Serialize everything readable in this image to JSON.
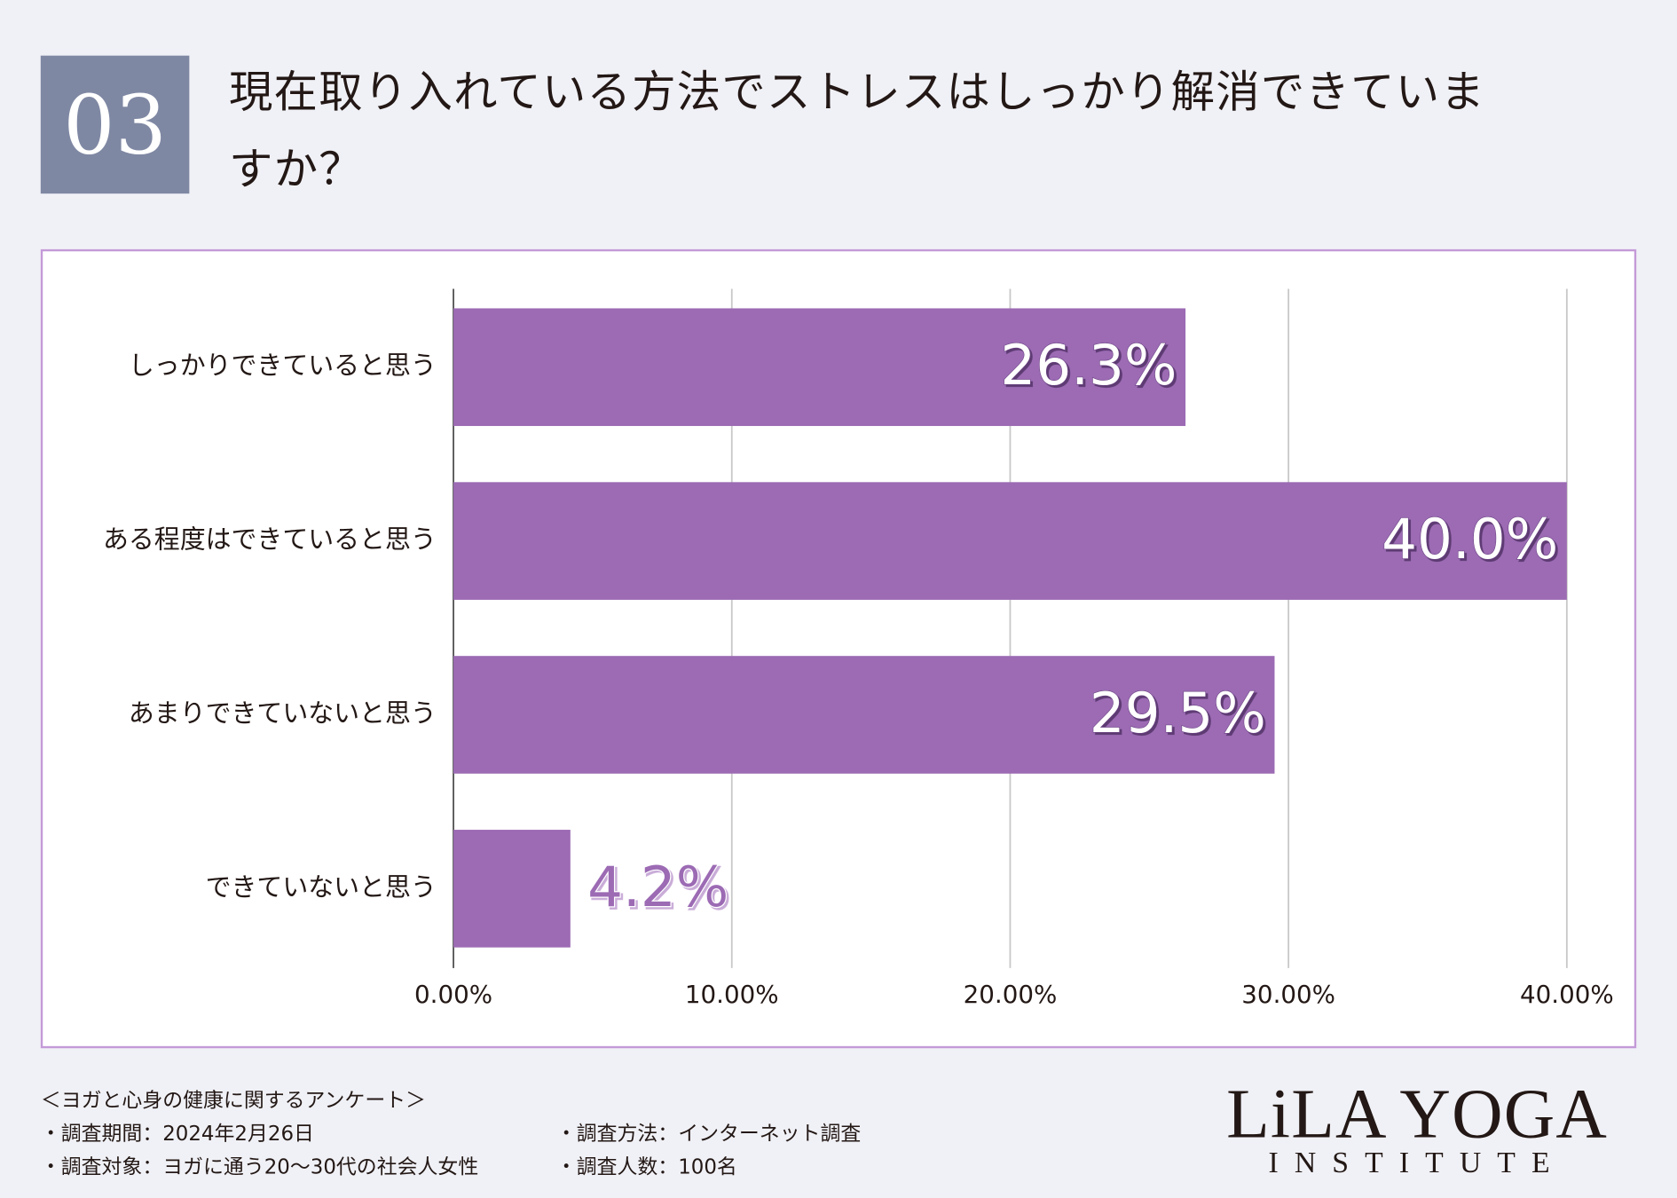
{
  "badge": "03",
  "chart_data": {
    "type": "bar",
    "orientation": "horizontal",
    "title": "現在取り入れている方法でストレスはしっかり解消できていますか？",
    "categories": [
      "しっかりできていると思う",
      "ある程度はできていると思う",
      "あまりできていないと思う",
      "できていないと思う"
    ],
    "values": [
      26.3,
      40.0,
      29.5,
      4.2
    ],
    "value_labels": [
      "26.3%",
      "40.0%",
      "29.5%",
      "4.2%"
    ],
    "color": "#9c6bb4",
    "xlim": [
      0,
      40
    ],
    "xticks": [
      {
        "value": 0,
        "label": "0.00%"
      },
      {
        "value": 10,
        "label": "10.00%"
      },
      {
        "value": 20,
        "label": "20.00%"
      },
      {
        "value": 30,
        "label": "30.00%"
      },
      {
        "value": 40,
        "label": "40.00%"
      }
    ],
    "grid": true
  },
  "footer": {
    "survey_name": "＜ヨガと心身の健康に関するアンケート＞",
    "items": [
      "・調査期間：2024年2月26日",
      "・調査方法：インターネット調査",
      "・調査対象：ヨガに通う20〜30代の社会人女性",
      "・調査人数：100名"
    ]
  },
  "logo": {
    "name": "LiLA YOGA",
    "sub": "INSTITUTE"
  }
}
